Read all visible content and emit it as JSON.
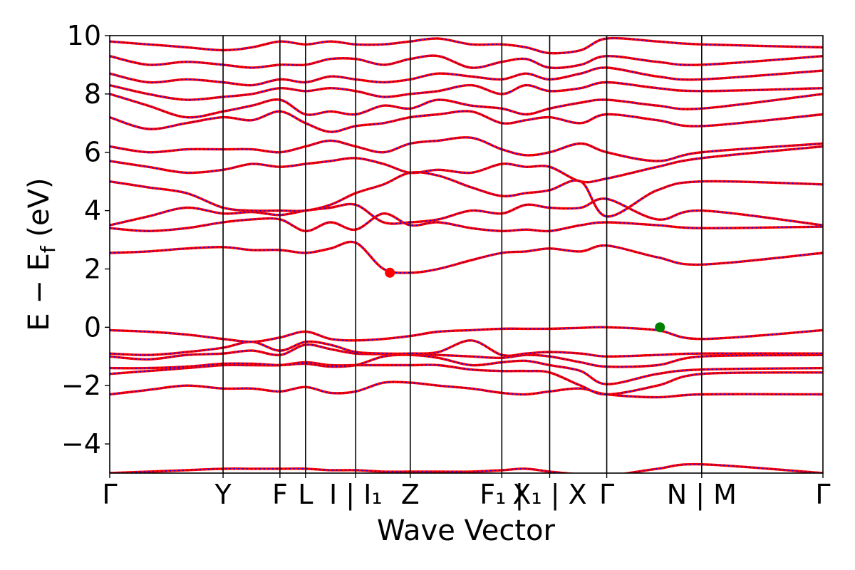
{
  "chart_data": {
    "type": "line",
    "title": "",
    "xlabel": "Wave Vector",
    "ylabel": "E − E_f (eV)",
    "ylabel_parts": {
      "main": "E − E",
      "sub": "f",
      "unit": " (eV)"
    },
    "ylim": [
      -5,
      10
    ],
    "xlim": [
      0,
      1
    ],
    "yticks": [
      -4,
      -2,
      0,
      2,
      4,
      6,
      8,
      10
    ],
    "ytick_labels": [
      "−4",
      "−2",
      "0",
      "2",
      "4",
      "6",
      "8",
      "10"
    ],
    "kpoints": [
      {
        "label": "Γ",
        "x": 0.0
      },
      {
        "label": "Y",
        "x": 0.1035
      },
      {
        "label": "F",
        "x": 0.1554
      },
      {
        "label": "L",
        "x": 0.1788
      },
      {
        "label": "I | I₁",
        "x": 0.2246
      },
      {
        "label": "Z",
        "x": 0.2744
      },
      {
        "label": "F₁ | Y",
        "x": 0.358
      },
      {
        "label": "X₁ | X",
        "x": 0.4017
      },
      {
        "label": "Γ",
        "x": 0.4538
      },
      {
        "label": "N | M",
        "x": 0.5405
      },
      {
        "label": "Γ",
        "x": 0.6512
      }
    ],
    "kpoint_label_display": [
      "Γ",
      "Y",
      "F",
      "L",
      "I | I₁",
      "Z",
      "F₁ |",
      "X₁ | X",
      "Γ",
      "N | M",
      "Γ"
    ],
    "grid": false,
    "legend": "none",
    "series_style": {
      "primary_color": "#ff0000",
      "overlay_color": "#0000ff",
      "overlay_dash": "dotted"
    },
    "markers": [
      {
        "kind": "cbm",
        "color": "#ff0000",
        "x": 0.2558,
        "y": 1.87
      },
      {
        "kind": "vbm",
        "color": "#008000",
        "x": 0.5024,
        "y": 0.0
      }
    ],
    "bands": [
      [
        -2.3,
        -2.15,
        -2.0,
        -2.1,
        -2.1,
        -2.2,
        -2.05,
        -2.25,
        -2.2,
        -1.9,
        -1.9,
        -2.0,
        -2.1,
        -2.25,
        -2.3,
        -2.2,
        -2.1,
        -2.3,
        -2.4,
        -2.3,
        -2.3
      ],
      [
        -1.6,
        -1.5,
        -1.4,
        -1.3,
        -1.3,
        -1.3,
        -1.2,
        -1.3,
        -1.3,
        -1.3,
        -1.3,
        -1.3,
        -1.45,
        -1.5,
        -1.5,
        -1.55,
        -2.0,
        -2.3,
        -2.0,
        -1.6,
        -1.55
      ],
      [
        -1.4,
        -1.4,
        -1.35,
        -1.25,
        -1.25,
        -1.3,
        -1.25,
        -1.35,
        -1.3,
        -1.0,
        -0.95,
        -1.05,
        -1.3,
        -1.2,
        -1.15,
        -1.3,
        -1.5,
        -1.95,
        -1.6,
        -1.45,
        -1.4
      ],
      [
        -1.0,
        -1.1,
        -0.95,
        -0.9,
        -0.8,
        -0.95,
        -0.6,
        -0.75,
        -0.9,
        -0.92,
        -0.92,
        -0.95,
        -1.0,
        -1.05,
        -0.95,
        -1.0,
        -1.2,
        -1.35,
        -1.3,
        -1.0,
        -0.95
      ],
      [
        -0.9,
        -0.95,
        -0.85,
        -0.7,
        -0.5,
        -0.8,
        -0.5,
        -0.6,
        -0.85,
        -0.9,
        -0.9,
        -0.85,
        -0.45,
        -0.95,
        -0.9,
        -0.85,
        -0.9,
        -1.0,
        -0.95,
        -0.9,
        -0.9
      ],
      [
        -0.1,
        -0.15,
        -0.25,
        -0.4,
        -0.5,
        -0.35,
        -0.15,
        -0.4,
        -0.45,
        -0.4,
        -0.3,
        -0.15,
        -0.1,
        -0.05,
        -0.05,
        -0.05,
        -0.02,
        0.0,
        -0.1,
        -0.4,
        -0.1
      ],
      [
        2.55,
        2.6,
        2.7,
        2.75,
        2.65,
        2.65,
        2.55,
        2.7,
        2.9,
        2.0,
        1.87,
        2.0,
        2.3,
        2.55,
        2.6,
        2.7,
        2.6,
        2.8,
        2.4,
        2.15,
        2.55
      ],
      [
        3.4,
        3.3,
        3.4,
        3.6,
        3.7,
        3.7,
        3.3,
        3.6,
        3.35,
        3.9,
        3.5,
        3.6,
        3.4,
        3.3,
        3.35,
        3.3,
        3.5,
        3.6,
        3.5,
        3.4,
        3.45
      ],
      [
        3.5,
        3.8,
        4.1,
        3.9,
        3.95,
        3.85,
        4.0,
        4.1,
        4.2,
        3.6,
        3.6,
        3.7,
        4.0,
        3.9,
        4.2,
        4.1,
        4.1,
        4.4,
        3.7,
        4.0,
        3.5
      ],
      [
        5.0,
        4.8,
        4.6,
        4.1,
        4.0,
        4.0,
        4.0,
        4.2,
        4.6,
        4.9,
        5.3,
        5.2,
        4.8,
        4.5,
        4.6,
        4.7,
        5.0,
        3.8,
        4.7,
        5.0,
        4.9
      ],
      [
        5.7,
        5.5,
        5.3,
        5.4,
        5.6,
        5.5,
        5.6,
        5.7,
        5.8,
        5.6,
        5.3,
        5.4,
        5.3,
        5.6,
        5.5,
        5.5,
        5.0,
        5.1,
        5.5,
        5.8,
        6.2
      ],
      [
        6.2,
        6.0,
        6.1,
        6.1,
        6.1,
        6.0,
        6.2,
        6.4,
        6.2,
        6.0,
        6.3,
        6.4,
        6.5,
        6.1,
        5.9,
        6.0,
        6.3,
        6.0,
        5.7,
        6.0,
        6.3
      ],
      [
        7.2,
        6.8,
        7.0,
        7.2,
        7.1,
        7.4,
        7.0,
        6.7,
        6.9,
        7.0,
        7.2,
        7.3,
        7.4,
        7.0,
        7.1,
        7.2,
        7.0,
        7.3,
        7.1,
        6.9,
        7.3
      ],
      [
        8.0,
        7.6,
        7.2,
        7.4,
        7.6,
        7.8,
        7.3,
        7.4,
        7.3,
        7.6,
        7.5,
        7.8,
        7.6,
        7.5,
        7.3,
        7.5,
        7.7,
        7.8,
        7.6,
        7.5,
        8.0
      ],
      [
        8.3,
        8.0,
        7.8,
        7.9,
        8.0,
        8.2,
        8.1,
        8.2,
        8.1,
        7.9,
        8.0,
        8.1,
        8.3,
        8.0,
        8.3,
        8.1,
        8.2,
        8.4,
        8.2,
        8.1,
        8.2
      ],
      [
        8.7,
        8.4,
        8.5,
        8.4,
        8.3,
        8.5,
        8.4,
        8.6,
        8.5,
        8.4,
        8.5,
        8.7,
        8.6,
        8.5,
        8.7,
        8.5,
        8.7,
        8.9,
        8.6,
        8.5,
        8.8
      ],
      [
        9.3,
        9.0,
        9.1,
        9.0,
        8.9,
        9.0,
        9.0,
        9.2,
        9.2,
        9.0,
        9.2,
        9.3,
        8.9,
        9.1,
        9.2,
        8.9,
        9.0,
        9.3,
        9.1,
        9.0,
        9.3
      ],
      [
        9.8,
        9.7,
        9.6,
        9.5,
        9.6,
        9.8,
        9.7,
        9.8,
        9.7,
        9.7,
        9.8,
        9.9,
        9.7,
        9.7,
        9.6,
        9.4,
        9.5,
        9.9,
        9.8,
        9.7,
        9.6
      ]
    ],
    "band_x": [
      0.0,
      0.035,
      0.07,
      0.1035,
      0.13,
      0.1554,
      0.1788,
      0.2015,
      0.2246,
      0.25,
      0.2744,
      0.3,
      0.33,
      0.358,
      0.38,
      0.4017,
      0.43,
      0.4538,
      0.5,
      0.5405,
      0.6512
    ],
    "lower_bands": [
      [
        -5.0,
        -4.95,
        -4.9,
        -4.85,
        -4.85,
        -4.85,
        -4.85,
        -4.9,
        -4.9,
        -4.95,
        -4.95,
        -4.95,
        -4.95,
        -4.9,
        -4.85,
        -4.95,
        -5.05,
        -5.1,
        -4.85,
        -4.7,
        -5.0
      ]
    ]
  }
}
